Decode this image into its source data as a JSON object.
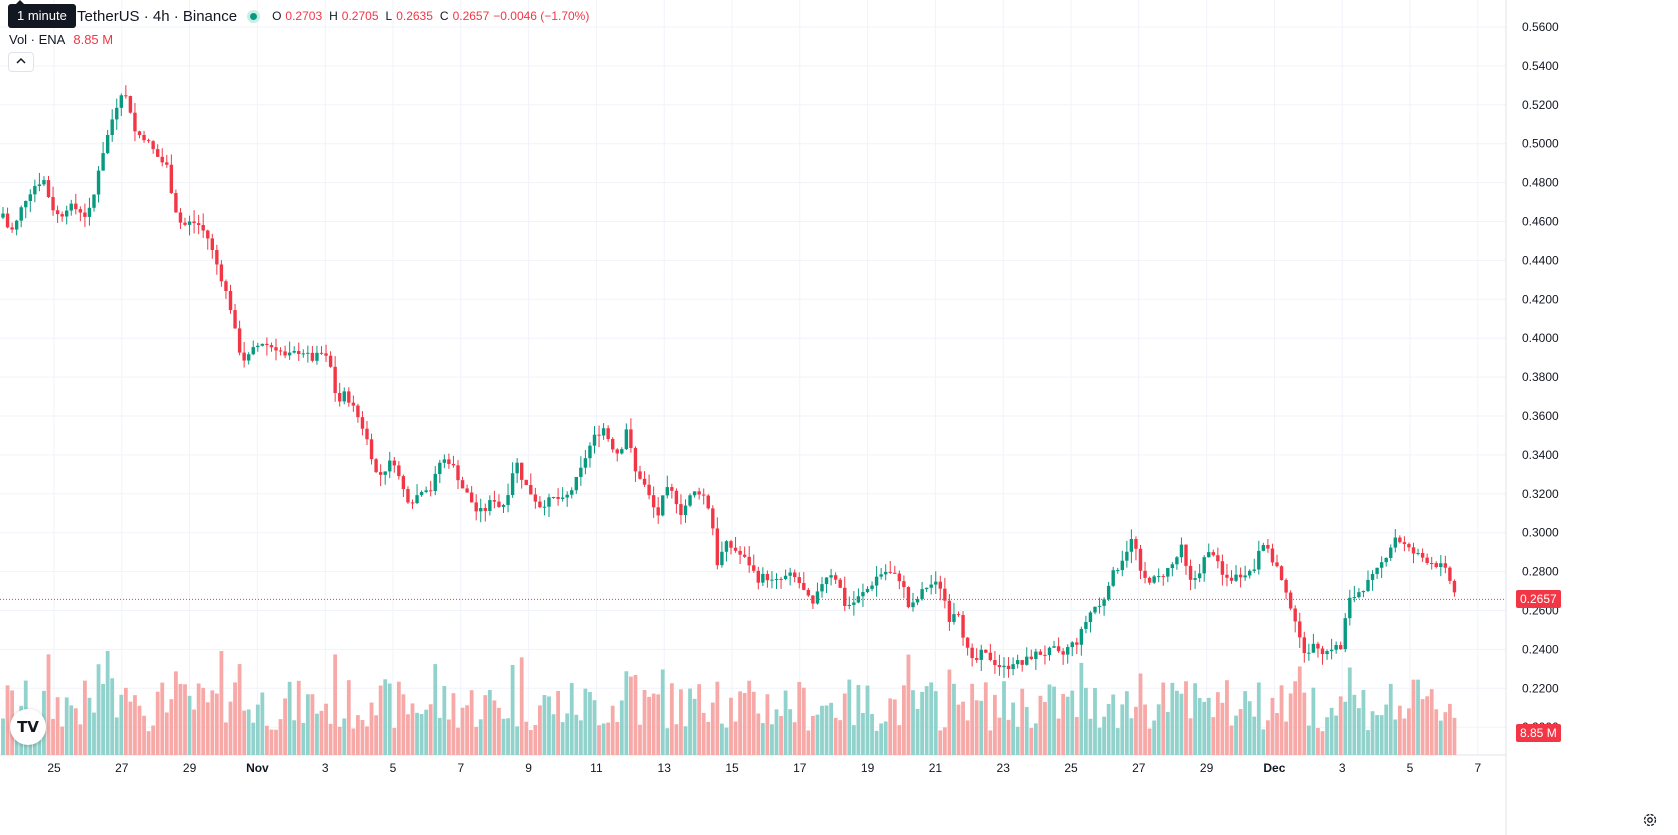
{
  "header": {
    "symbol": "TetherUS · 4h · Binance",
    "tooltip": "1 minute",
    "ohlc": [
      {
        "k": "O",
        "v": "0.2703"
      },
      {
        "k": "H",
        "v": "0.2705"
      },
      {
        "k": "L",
        "v": "0.2635"
      },
      {
        "k": "C",
        "v": "0.2657"
      },
      {
        "k": "",
        "v": "−0.0046 (−1.70%)"
      }
    ]
  },
  "volume_legend": {
    "label": "Vol · ENA",
    "value": "8.85 M"
  },
  "collapse_icon": "chevron-up-icon",
  "logo_text": "TV",
  "last_price_label": "0.2657",
  "last_volume_label": "8.85 M",
  "colors": {
    "up": "#089981",
    "down": "#f23645",
    "up_vol": "#92d2cc",
    "down_vol": "#f7a9a7",
    "grid": "#f0f3fa"
  },
  "chart_data": {
    "type": "candlestick",
    "price_axis": {
      "ticks": [
        "0.5600",
        "0.5400",
        "0.5200",
        "0.5000",
        "0.4800",
        "0.4600",
        "0.4400",
        "0.4200",
        "0.4000",
        "0.3800",
        "0.3600",
        "0.3400",
        "0.3200",
        "0.3000",
        "0.2800",
        "0.2600",
        "0.2400",
        "0.2200",
        "0.2000"
      ],
      "min": 0.19,
      "max": 0.567
    },
    "time_axis": [
      "25",
      "27",
      "29",
      "Nov",
      "3",
      "5",
      "7",
      "9",
      "11",
      "13",
      "15",
      "17",
      "19",
      "21",
      "23",
      "25",
      "27",
      "29",
      "Dec",
      "3",
      "5",
      "7"
    ],
    "last_price": 0.2657,
    "last_volume": "8.85 M",
    "path": [
      [
        0,
        0.462
      ],
      [
        6,
        0.468
      ],
      [
        10,
        0.458
      ],
      [
        18,
        0.455
      ],
      [
        28,
        0.47
      ],
      [
        38,
        0.478
      ],
      [
        48,
        0.482
      ],
      [
        56,
        0.468
      ],
      [
        64,
        0.462
      ],
      [
        72,
        0.468
      ],
      [
        84,
        0.466
      ],
      [
        92,
        0.462
      ],
      [
        98,
        0.472
      ],
      [
        104,
        0.49
      ],
      [
        110,
        0.5
      ],
      [
        118,
        0.515
      ],
      [
        126,
        0.527
      ],
      [
        133,
        0.522
      ],
      [
        140,
        0.505
      ],
      [
        148,
        0.504
      ],
      [
        156,
        0.498
      ],
      [
        164,
        0.492
      ],
      [
        172,
        0.488
      ],
      [
        178,
        0.47
      ],
      [
        184,
        0.46
      ],
      [
        190,
        0.458
      ],
      [
        196,
        0.46
      ],
      [
        204,
        0.458
      ],
      [
        212,
        0.452
      ],
      [
        220,
        0.44
      ],
      [
        228,
        0.428
      ],
      [
        236,
        0.414
      ],
      [
        242,
        0.396
      ],
      [
        250,
        0.388
      ],
      [
        258,
        0.394
      ],
      [
        266,
        0.398
      ],
      [
        274,
        0.396
      ],
      [
        282,
        0.395
      ],
      [
        290,
        0.39
      ],
      [
        298,
        0.392
      ],
      [
        306,
        0.394
      ],
      [
        316,
        0.389
      ],
      [
        326,
        0.392
      ],
      [
        334,
        0.388
      ],
      [
        342,
        0.366
      ],
      [
        350,
        0.372
      ],
      [
        358,
        0.364
      ],
      [
        366,
        0.356
      ],
      [
        374,
        0.344
      ],
      [
        382,
        0.328
      ],
      [
        390,
        0.333
      ],
      [
        398,
        0.338
      ],
      [
        406,
        0.324
      ],
      [
        414,
        0.316
      ],
      [
        420,
        0.318
      ],
      [
        428,
        0.324
      ],
      [
        436,
        0.322
      ],
      [
        444,
        0.336
      ],
      [
        452,
        0.338
      ],
      [
        460,
        0.332
      ],
      [
        466,
        0.324
      ],
      [
        474,
        0.318
      ],
      [
        482,
        0.31
      ],
      [
        490,
        0.312
      ],
      [
        498,
        0.318
      ],
      [
        506,
        0.312
      ],
      [
        512,
        0.32
      ],
      [
        520,
        0.338
      ],
      [
        528,
        0.326
      ],
      [
        536,
        0.32
      ],
      [
        544,
        0.314
      ],
      [
        552,
        0.316
      ],
      [
        560,
        0.318
      ],
      [
        568,
        0.316
      ],
      [
        576,
        0.322
      ],
      [
        584,
        0.33
      ],
      [
        592,
        0.342
      ],
      [
        600,
        0.35
      ],
      [
        608,
        0.354
      ],
      [
        616,
        0.345
      ],
      [
        624,
        0.34
      ],
      [
        632,
        0.356
      ],
      [
        638,
        0.332
      ],
      [
        646,
        0.328
      ],
      [
        654,
        0.318
      ],
      [
        662,
        0.308
      ],
      [
        670,
        0.322
      ],
      [
        678,
        0.32
      ],
      [
        686,
        0.31
      ],
      [
        694,
        0.318
      ],
      [
        702,
        0.322
      ],
      [
        710,
        0.318
      ],
      [
        716,
        0.308
      ],
      [
        722,
        0.284
      ],
      [
        730,
        0.294
      ],
      [
        738,
        0.292
      ],
      [
        746,
        0.288
      ],
      [
        754,
        0.284
      ],
      [
        762,
        0.276
      ],
      [
        770,
        0.278
      ],
      [
        778,
        0.274
      ],
      [
        786,
        0.276
      ],
      [
        794,
        0.278
      ],
      [
        802,
        0.276
      ],
      [
        810,
        0.268
      ],
      [
        818,
        0.262
      ],
      [
        826,
        0.274
      ],
      [
        834,
        0.28
      ],
      [
        842,
        0.276
      ],
      [
        850,
        0.262
      ],
      [
        858,
        0.264
      ],
      [
        866,
        0.268
      ],
      [
        874,
        0.272
      ],
      [
        882,
        0.278
      ],
      [
        890,
        0.28
      ],
      [
        898,
        0.278
      ],
      [
        906,
        0.276
      ],
      [
        914,
        0.26
      ],
      [
        922,
        0.266
      ],
      [
        930,
        0.272
      ],
      [
        938,
        0.274
      ],
      [
        946,
        0.272
      ],
      [
        954,
        0.256
      ],
      [
        962,
        0.262
      ],
      [
        970,
        0.242
      ],
      [
        978,
        0.232
      ],
      [
        986,
        0.238
      ],
      [
        994,
        0.236
      ],
      [
        1002,
        0.232
      ],
      [
        1010,
        0.23
      ],
      [
        1018,
        0.234
      ],
      [
        1026,
        0.232
      ],
      [
        1034,
        0.236
      ],
      [
        1042,
        0.238
      ],
      [
        1050,
        0.238
      ],
      [
        1058,
        0.24
      ],
      [
        1066,
        0.236
      ],
      [
        1074,
        0.242
      ],
      [
        1082,
        0.244
      ],
      [
        1090,
        0.254
      ],
      [
        1098,
        0.262
      ],
      [
        1106,
        0.262
      ],
      [
        1114,
        0.276
      ],
      [
        1122,
        0.282
      ],
      [
        1130,
        0.29
      ],
      [
        1138,
        0.298
      ],
      [
        1146,
        0.276
      ],
      [
        1154,
        0.276
      ],
      [
        1162,
        0.276
      ],
      [
        1170,
        0.28
      ],
      [
        1178,
        0.284
      ],
      [
        1186,
        0.292
      ],
      [
        1194,
        0.274
      ],
      [
        1202,
        0.278
      ],
      [
        1210,
        0.288
      ],
      [
        1218,
        0.29
      ],
      [
        1226,
        0.278
      ],
      [
        1234,
        0.276
      ],
      [
        1242,
        0.278
      ],
      [
        1250,
        0.28
      ],
      [
        1258,
        0.28
      ],
      [
        1266,
        0.298
      ],
      [
        1274,
        0.288
      ],
      [
        1282,
        0.282
      ],
      [
        1290,
        0.268
      ],
      [
        1298,
        0.26
      ],
      [
        1306,
        0.24
      ],
      [
        1314,
        0.24
      ],
      [
        1322,
        0.242
      ],
      [
        1330,
        0.238
      ],
      [
        1338,
        0.242
      ],
      [
        1346,
        0.24
      ],
      [
        1352,
        0.264
      ],
      [
        1360,
        0.268
      ],
      [
        1368,
        0.272
      ],
      [
        1376,
        0.276
      ],
      [
        1384,
        0.282
      ],
      [
        1392,
        0.29
      ],
      [
        1400,
        0.298
      ],
      [
        1408,
        0.294
      ],
      [
        1416,
        0.29
      ],
      [
        1424,
        0.288
      ],
      [
        1432,
        0.286
      ],
      [
        1440,
        0.284
      ],
      [
        1448,
        0.282
      ],
      [
        1456,
        0.274
      ],
      [
        1461,
        0.2657
      ]
    ]
  }
}
